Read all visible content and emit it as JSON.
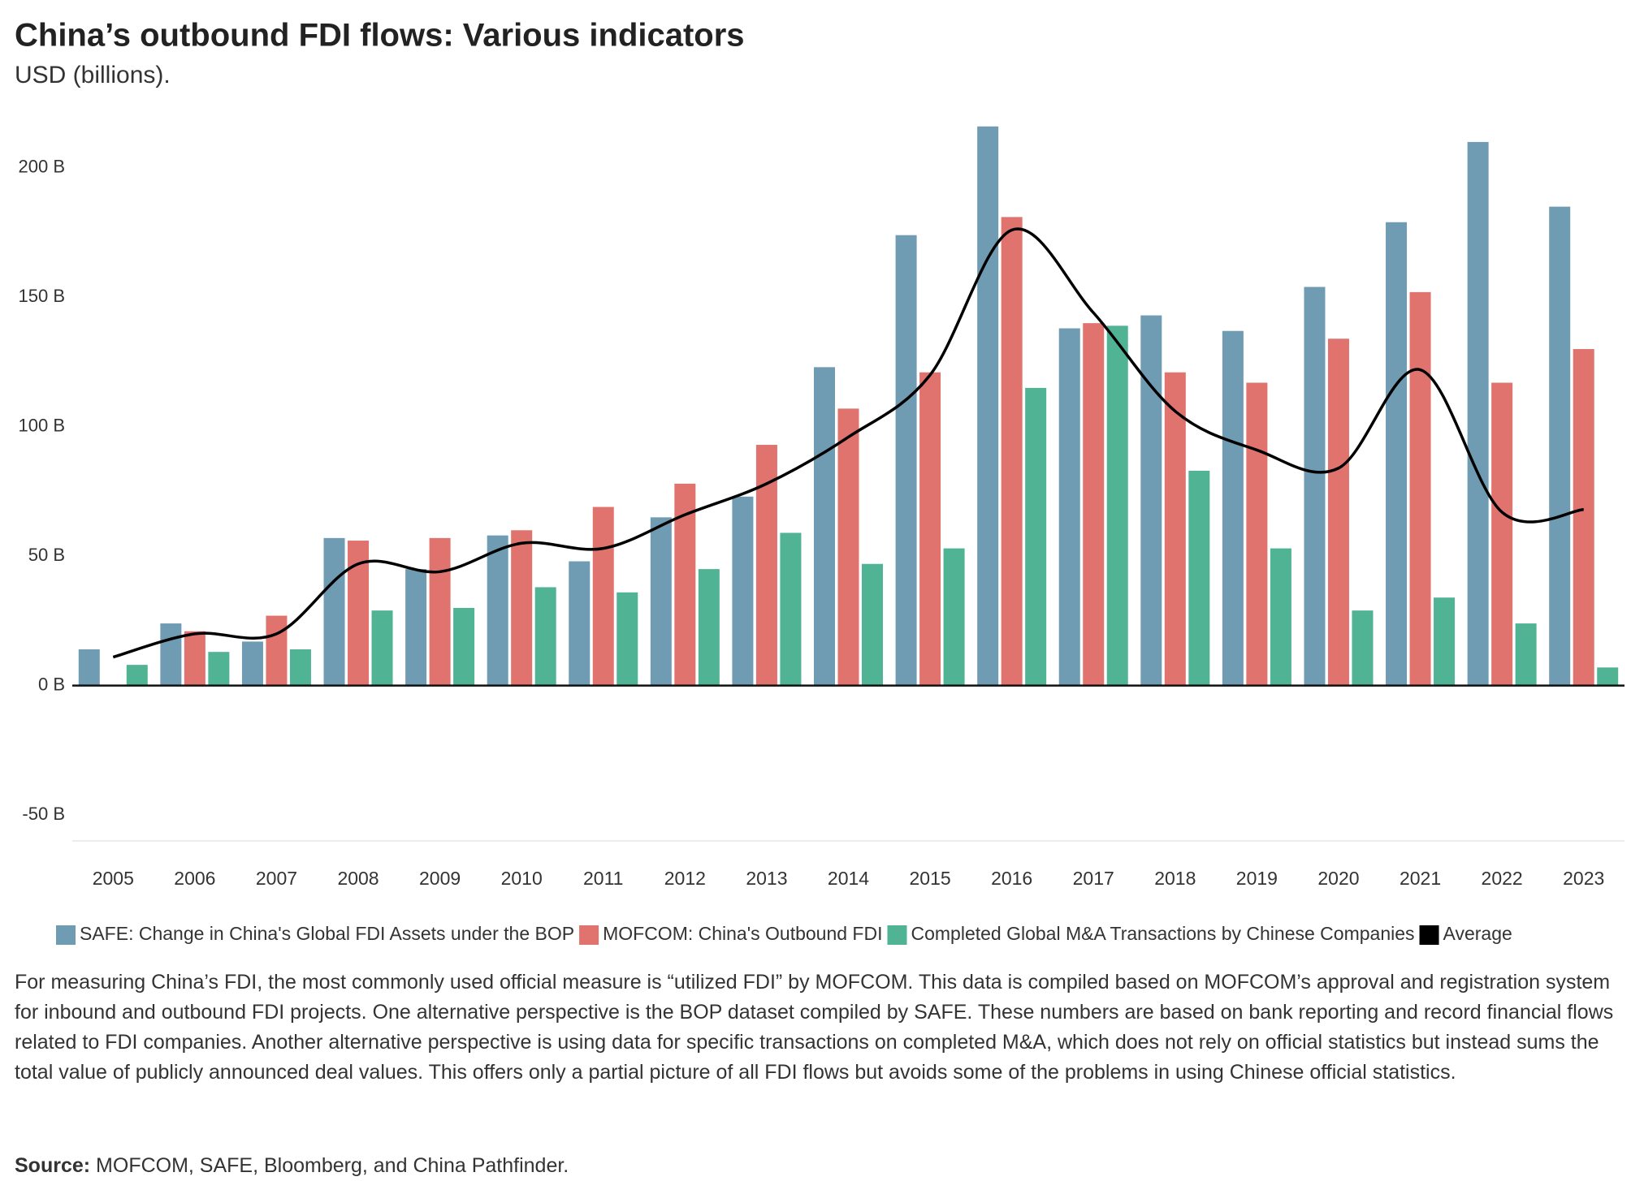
{
  "chart_data": {
    "type": "bar",
    "title": "China’s outbound FDI flows: Various indicators",
    "subtitle": "USD (billions).",
    "categories": [
      "2005",
      "2006",
      "2007",
      "2008",
      "2009",
      "2010",
      "2011",
      "2012",
      "2013",
      "2014",
      "2015",
      "2016",
      "2017",
      "2018",
      "2019",
      "2020",
      "2021",
      "2022",
      "2023"
    ],
    "series": [
      {
        "name": "SAFE: Change in China's Global FDI Assets under the BOP",
        "color": "#6f9bb3",
        "type": "bar",
        "values": [
          14,
          24,
          17,
          57,
          45,
          58,
          48,
          65,
          73,
          123,
          174,
          216,
          138,
          143,
          137,
          154,
          179,
          210,
          185
        ]
      },
      {
        "name": "MOFCOM: China's Outbound FDI",
        "color": "#e0736d",
        "type": "bar",
        "values": [
          null,
          21,
          27,
          56,
          57,
          60,
          69,
          78,
          93,
          107,
          121,
          181,
          140,
          121,
          117,
          134,
          152,
          117,
          130
        ]
      },
      {
        "name": "Completed Global M&A Transactions by Chinese Companies",
        "color": "#4fb394",
        "type": "bar",
        "values": [
          8,
          13,
          14,
          29,
          30,
          38,
          36,
          45,
          59,
          47,
          53,
          115,
          139,
          83,
          53,
          29,
          34,
          24,
          7
        ]
      },
      {
        "name": "Average",
        "color": "#000000",
        "type": "line",
        "values": [
          11,
          20,
          20,
          47,
          44,
          55,
          53,
          66,
          78,
          96,
          120,
          176,
          144,
          106,
          91,
          84,
          122,
          67,
          68
        ]
      }
    ],
    "ylim": [
      -60,
      220
    ],
    "yticks": [
      {
        "value": -50,
        "label": "-50 B"
      },
      {
        "value": 0,
        "label": "0 B"
      },
      {
        "value": 50,
        "label": "50 B"
      },
      {
        "value": 100,
        "label": "100 B"
      },
      {
        "value": 150,
        "label": "150 B"
      },
      {
        "value": 200,
        "label": "200 B"
      }
    ],
    "legend": "bottom",
    "note": "For measuring China’s FDI, the most commonly used official measure is “utilized FDI” by MOFCOM. This data is compiled based on MOFCOM’s approval and registration system for inbound and outbound FDI projects. One alternative perspective is the BOP dataset compiled by SAFE. These numbers are based on bank reporting and record financial flows related to FDI companies. Another alternative perspective is using data for specific transactions on completed M&A, which does not rely on official statistics but instead sums the total value of publicly announced deal values. This offers only a partial picture of all FDI flows but avoids some of the problems in using Chinese official statistics.",
    "source_label": "Source:",
    "source": "MOFCOM, SAFE, Bloomberg, and China Pathfinder."
  }
}
